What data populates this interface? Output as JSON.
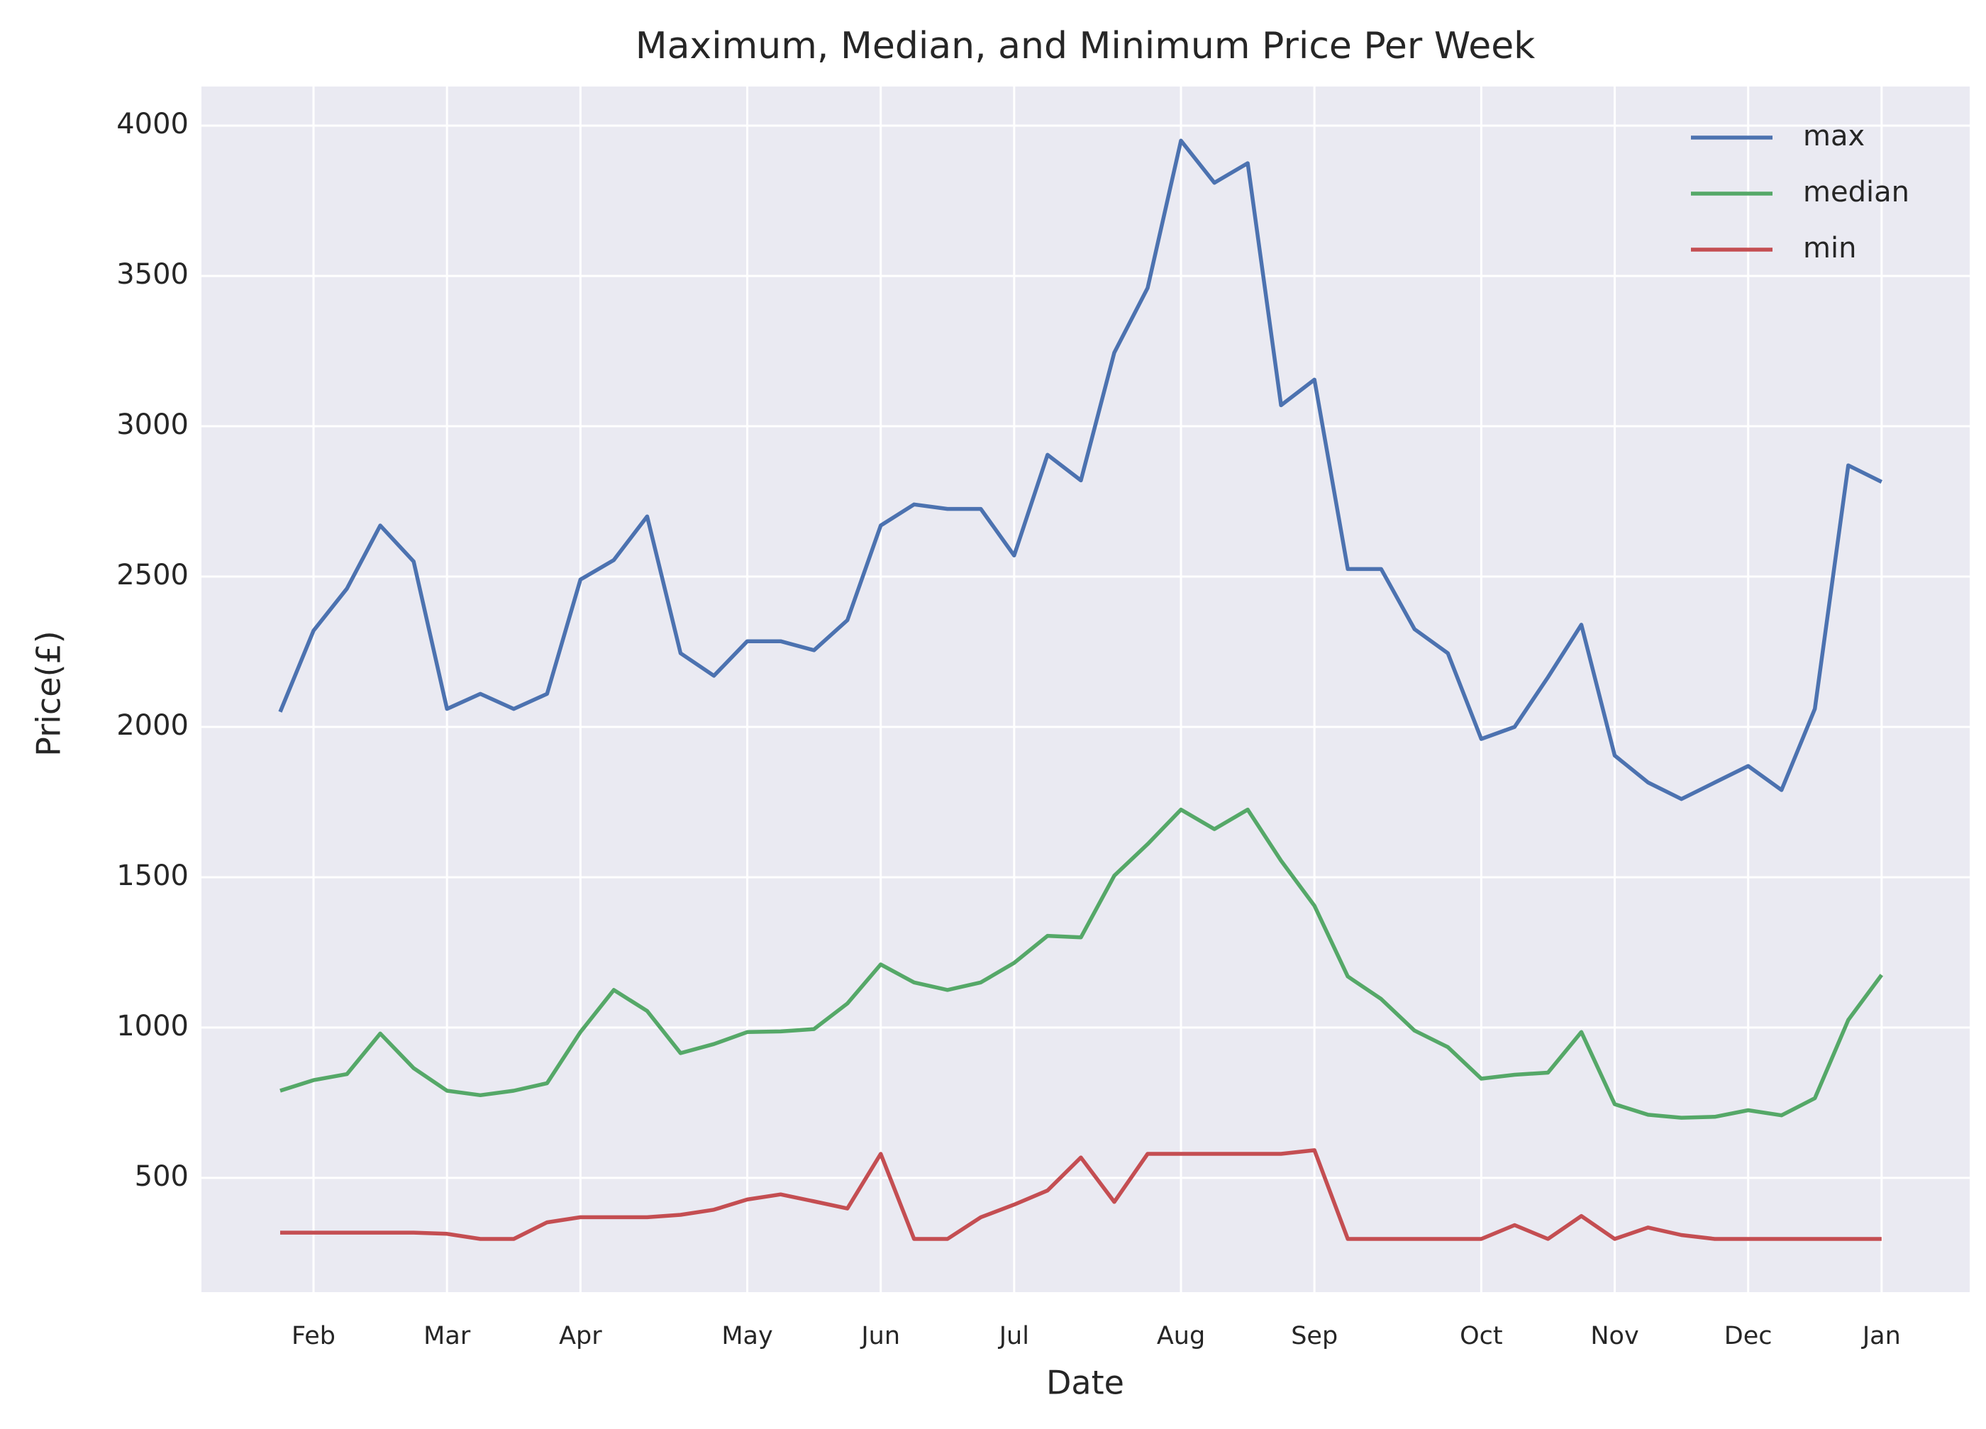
{
  "chart_data": {
    "type": "line",
    "title": "Maximum, Median, and Minimum Price Per Week",
    "x_label": "Date",
    "y_label": "Price(£)",
    "categories": [
      null,
      "Feb",
      null,
      null,
      null,
      "Mar",
      null,
      null,
      null,
      "Apr",
      null,
      null,
      null,
      null,
      "May",
      null,
      null,
      null,
      "Jun",
      null,
      null,
      null,
      "Jul",
      null,
      null,
      null,
      null,
      "Aug",
      null,
      null,
      null,
      "Sep",
      null,
      null,
      null,
      null,
      "Oct",
      null,
      null,
      null,
      "Nov",
      null,
      null,
      null,
      "Dec",
      null,
      null,
      null,
      "Jan"
    ],
    "series": [
      {
        "name": "max",
        "color": "#4c72b0",
        "values": [
          2050,
          2320,
          2460,
          2670,
          2550,
          2060,
          2110,
          2060,
          2110,
          2490,
          2555,
          2700,
          2245,
          2170,
          2285,
          2285,
          2255,
          2355,
          2670,
          2740,
          2725,
          2725,
          2570,
          2905,
          2820,
          3245,
          3460,
          3950,
          3810,
          3875,
          3070,
          3155,
          2525,
          2525,
          2325,
          2245,
          1960,
          2000,
          2165,
          2340,
          1905,
          1815,
          1760,
          1815,
          1870,
          1790,
          2060,
          2870,
          2815
        ]
      },
      {
        "name": "median",
        "color": "#55a868",
        "values": [
          790,
          825,
          845,
          980,
          865,
          790,
          775,
          790,
          815,
          985,
          1125,
          1055,
          915,
          945,
          985,
          987,
          995,
          1080,
          1210,
          1150,
          1125,
          1150,
          1215,
          1305,
          1300,
          1505,
          1610,
          1725,
          1660,
          1725,
          1555,
          1405,
          1170,
          1095,
          990,
          935,
          830,
          843,
          850,
          985,
          745,
          710,
          700,
          703,
          725,
          708,
          765,
          1025,
          1175
        ]
      },
      {
        "name": "min",
        "color": "#c44e52",
        "values": [
          318,
          318,
          318,
          318,
          318,
          314,
          297,
          297,
          352,
          369,
          369,
          369,
          377,
          394,
          428,
          445,
          422,
          398,
          580,
          297,
          297,
          369,
          411,
          458,
          568,
          420,
          580,
          580,
          580,
          580,
          580,
          592,
          297,
          297,
          297,
          297,
          297,
          343,
          297,
          373,
          297,
          335,
          310,
          297,
          297,
          297,
          297,
          297,
          297
        ]
      }
    ],
    "ylim": [
      120,
      4130
    ],
    "yticks": [
      500,
      1000,
      1500,
      2000,
      2500,
      3000,
      3500,
      4000
    ],
    "grid": true,
    "legend": "upper right"
  }
}
